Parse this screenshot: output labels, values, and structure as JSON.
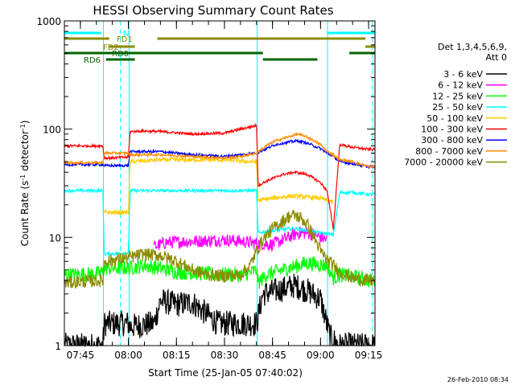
{
  "chart_data": {
    "type": "line",
    "title": "HESSI Observing Summary Count Rates",
    "xlabel": "Start Time (25-Jan-05 07:40:02)",
    "ylabel_parts": [
      "Count Rate (s",
      "-1",
      " detector",
      "-1",
      ")"
    ],
    "yscale": "log",
    "ylim": [
      1,
      1000
    ],
    "xlim_minutes": [
      0,
      97
    ],
    "x_ticks": [
      {
        "t": 5,
        "label": "07:45"
      },
      {
        "t": 20,
        "label": "08:00"
      },
      {
        "t": 35,
        "label": "08:15"
      },
      {
        "t": 50,
        "label": "08:30"
      },
      {
        "t": 65,
        "label": "08:45"
      },
      {
        "t": 80,
        "label": "09:00"
      },
      {
        "t": 95,
        "label": "09:15"
      }
    ],
    "y_ticks": [
      {
        "v": 1,
        "label": "1"
      },
      {
        "v": 10,
        "label": "10"
      },
      {
        "v": 100,
        "label": "100"
      },
      {
        "v": 1000,
        "label": "1000"
      }
    ],
    "legend_header": [
      "Det 1,3,4,5,6,9,",
      "Att 0"
    ],
    "series": [
      {
        "name": "3 - 6 keV",
        "color": "#000000",
        "x": [
          0,
          12,
          12.5,
          20,
          20.5,
          28,
          30,
          35,
          40,
          48,
          60,
          62,
          66,
          72,
          76,
          80,
          83,
          86,
          88,
          95,
          97
        ],
        "y": [
          1,
          1,
          1.6,
          1.6,
          1.5,
          1.6,
          2.6,
          2.4,
          2.5,
          1.6,
          1.6,
          3,
          3.2,
          3.6,
          3.2,
          2.7,
          1.2,
          1,
          1,
          1,
          1
        ]
      },
      {
        "name": "6 - 12 keV",
        "color": "#ff00ff",
        "x": [
          28,
          32,
          40,
          50,
          55,
          60,
          65,
          70,
          73,
          76,
          80,
          82
        ],
        "y": [
          8.2,
          9,
          9.2,
          9.5,
          9.2,
          8.8,
          8.6,
          10,
          11,
          11,
          10,
          9.5
        ]
      },
      {
        "name": "12 - 25 keV",
        "color": "#00ff00",
        "x": [
          0,
          10,
          12,
          12.5,
          20,
          25,
          30,
          35,
          45,
          55,
          58,
          60,
          60.5,
          63,
          68,
          72,
          76,
          80,
          82,
          84,
          86,
          90,
          95,
          97
        ],
        "y": [
          4.5,
          4.6,
          4.8,
          5.2,
          5.2,
          5.5,
          5.2,
          4.8,
          4.6,
          4.5,
          4.7,
          5,
          3.8,
          4.5,
          5,
          5.4,
          5.8,
          5.6,
          5.5,
          4.2,
          4.5,
          4.4,
          4,
          4
        ]
      },
      {
        "name": "25 - 50 keV",
        "color": "#00ffff",
        "x": [
          0,
          12,
          12.5,
          20,
          20.5,
          30,
          40,
          50,
          58,
          60,
          60.5,
          65,
          70,
          73,
          76,
          80,
          82,
          84,
          86,
          90,
          95,
          97
        ],
        "y": [
          27,
          27,
          7,
          7.2,
          27,
          27,
          27,
          27,
          27,
          27,
          11,
          11.5,
          12,
          12,
          11.5,
          11,
          10.8,
          10.5,
          26,
          26,
          25,
          25
        ]
      },
      {
        "name": "50 - 100 keV",
        "color": "#ffcc00",
        "x": [
          12.5,
          20,
          20.5,
          30,
          40,
          50,
          58,
          60,
          60.5,
          65,
          70,
          73,
          76,
          80,
          82,
          84
        ],
        "y": [
          17,
          17,
          50,
          52,
          52,
          52,
          50,
          50,
          22,
          23,
          24,
          24,
          23.5,
          23,
          22,
          21
        ]
      },
      {
        "name": "100 - 300 keV",
        "color": "#ff0000",
        "x": [
          0,
          12,
          12.5,
          20,
          20.5,
          25,
          30,
          40,
          50,
          55,
          60,
          60.5,
          63,
          68,
          72,
          76,
          80,
          82,
          84,
          86,
          90,
          95,
          97
        ],
        "y": [
          70,
          70,
          54,
          55,
          95,
          96,
          95,
          90,
          92,
          100,
          108,
          30,
          33,
          38,
          40,
          38,
          32,
          27,
          12,
          72,
          68,
          65,
          65
        ]
      },
      {
        "name": "300 - 800 keV",
        "color": "#0000ff",
        "x": [
          0,
          12,
          12.5,
          20,
          20.5,
          30,
          40,
          50,
          55,
          60,
          63,
          66,
          70,
          73,
          76,
          80,
          82,
          84,
          86,
          90,
          95,
          97
        ],
        "y": [
          47,
          47,
          46,
          46,
          62,
          62,
          58,
          56,
          58,
          60,
          66,
          72,
          76,
          78,
          74,
          66,
          60,
          56,
          50,
          48,
          45,
          45
        ]
      },
      {
        "name": "800 - 7000 keV",
        "color": "#ff8c00",
        "x": [
          0,
          12,
          12.5,
          20,
          20.5,
          30,
          40,
          50,
          55,
          60,
          63,
          66,
          70,
          73,
          76,
          80,
          82,
          84,
          86,
          90,
          95,
          97
        ],
        "y": [
          49,
          49,
          60,
          60,
          58,
          58,
          56,
          54,
          56,
          60,
          70,
          78,
          85,
          90,
          84,
          72,
          62,
          58,
          52,
          50,
          45,
          45
        ]
      },
      {
        "name": "7000 - 20000 keV",
        "color": "#8b8b00",
        "x": [
          0,
          12,
          12.5,
          20,
          25,
          30,
          35,
          40,
          45,
          50,
          55,
          58,
          60,
          62,
          65,
          68,
          70,
          72,
          74,
          76,
          78,
          80,
          82,
          84,
          86,
          90,
          95,
          97
        ],
        "y": [
          3.8,
          4,
          6,
          6.5,
          7,
          6.8,
          6,
          5,
          4.5,
          4.4,
          4.5,
          5.5,
          7.5,
          9.5,
          12,
          14,
          15.5,
          16,
          15,
          13,
          10,
          7.5,
          6.2,
          5.5,
          4.8,
          4.2,
          4,
          4
        ]
      }
    ],
    "flag_bars": [
      {
        "name": "N",
        "color": "#00ffff",
        "segments": [
          [
            0,
            11.5
          ],
          [
            82,
            97
          ]
        ]
      },
      {
        "name": "FD1",
        "color": "#8b8b00",
        "segments": [
          [
            0,
            14
          ],
          [
            29,
            94
          ]
        ]
      },
      {
        "name": "FD2",
        "color": "#8b8b00",
        "segments": [
          [
            14,
            22
          ],
          [
            94,
            97
          ]
        ]
      },
      {
        "name": "RD0",
        "color": "#006400",
        "segments": [
          [
            0,
            20
          ],
          [
            20,
            62
          ],
          [
            89,
            97
          ]
        ]
      },
      {
        "name": "RD6",
        "color": "#006400",
        "segments": [
          [
            13,
            22
          ],
          [
            62,
            79
          ]
        ]
      }
    ],
    "vlines_solid": [
      12.2,
      20.2,
      60.2,
      82.2
    ],
    "vlines_dashed": [
      17.5,
      96.2
    ],
    "timestamp": "26-Feb-2010 08:34"
  }
}
